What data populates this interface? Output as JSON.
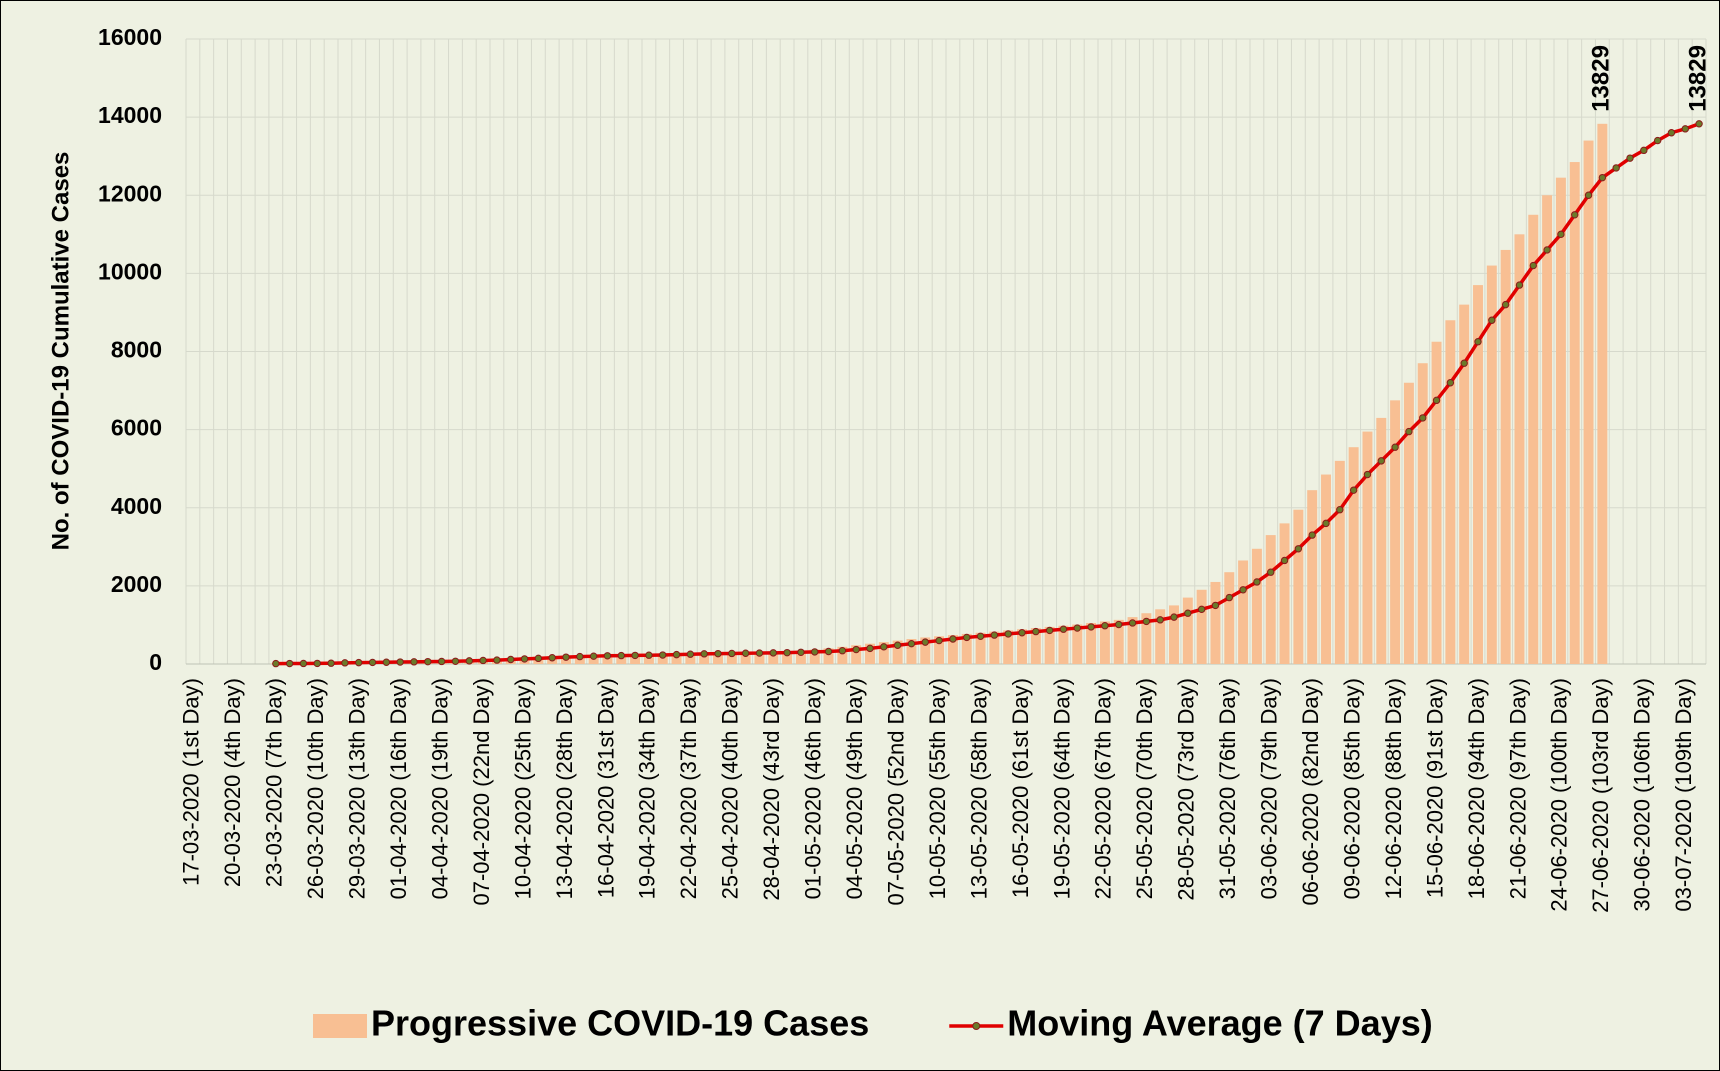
{
  "chart_data": {
    "type": "combo",
    "y_label": "No. of COVID-19 Cumulative Cases",
    "ylim": [
      0,
      16000
    ],
    "yticks": [
      0,
      2000,
      4000,
      6000,
      8000,
      10000,
      12000,
      14000,
      16000
    ],
    "grid": true,
    "legend": "bottom",
    "categories": [
      "17-03-2020 (1st Day)",
      null,
      null,
      "20-03-2020 (4th Day)",
      null,
      null,
      "23-03-2020 (7th Day)",
      null,
      null,
      "26-03-2020 (10th Day)",
      null,
      null,
      "29-03-2020 (13th Day)",
      null,
      null,
      "01-04-2020 (16th Day)",
      null,
      null,
      "04-04-2020 (19th Day)",
      null,
      null,
      "07-04-2020 (22nd Day)",
      null,
      null,
      "10-04-2020 (25th Day)",
      null,
      null,
      "13-04-2020 (28th Day)",
      null,
      null,
      "16-04-2020 (31st Day)",
      null,
      null,
      "19-04-2020 (34th Day)",
      null,
      null,
      "22-04-2020 (37th Day)",
      null,
      null,
      "25-04-2020 (40th Day)",
      null,
      null,
      "28-04-2020 (43rd Day)",
      null,
      null,
      "01-05-2020 (46th Day)",
      null,
      null,
      "04-05-2020 (49th Day)",
      null,
      null,
      "07-05-2020 (52nd Day)",
      null,
      null,
      "10-05-2020 (55th Day)",
      null,
      null,
      "13-05-2020 (58th Day)",
      null,
      null,
      "16-05-2020 (61st Day)",
      null,
      null,
      "19-05-2020 (64th Day)",
      null,
      null,
      "22-05-2020 (67th Day)",
      null,
      null,
      "25-05-2020 (70th Day)",
      null,
      null,
      "28-05-2020 (73rd Day)",
      null,
      null,
      "31-05-2020 (76th Day)",
      null,
      null,
      "03-06-2020 (79th Day)",
      null,
      null,
      "06-06-2020 (82nd Day)",
      null,
      null,
      "09-06-2020 (85th Day)",
      null,
      null,
      "12-06-2020 (88th Day)",
      null,
      null,
      "15-06-2020 (91st Day)",
      null,
      null,
      "18-06-2020 (94th Day)",
      null,
      null,
      "21-06-2020 (97th Day)",
      null,
      null,
      "24-06-2020 (100th Day)",
      null,
      null,
      "27-06-2020 (103rd Day)",
      null,
      null,
      "30-06-2020 (106th Day)",
      null,
      null,
      "03-07-2020 (109th Day)",
      null
    ],
    "series": [
      {
        "name": "Progressive COVID-19 Cases",
        "type": "bar",
        "color": "#f8bf93",
        "values": [
          null,
          null,
          null,
          null,
          null,
          null,
          15,
          20,
          30,
          35,
          40,
          45,
          50,
          55,
          60,
          65,
          70,
          80,
          90,
          100,
          115,
          130,
          145,
          160,
          175,
          190,
          200,
          210,
          215,
          220,
          225,
          230,
          240,
          250,
          260,
          265,
          270,
          275,
          280,
          285,
          290,
          300,
          310,
          320,
          340,
          370,
          400,
          440,
          480,
          520,
          560,
          600,
          640,
          680,
          710,
          740,
          770,
          800,
          830,
          860,
          890,
          920,
          950,
          980,
          1010,
          1050,
          1090,
          1130,
          1200,
          1300,
          1400,
          1500,
          1700,
          1900,
          2100,
          2350,
          2650,
          2950,
          3300,
          3600,
          3950,
          4450,
          4850,
          5200,
          5550,
          5950,
          6300,
          6750,
          7200,
          7700,
          8250,
          8800,
          9200,
          9700,
          10200,
          10600,
          11000,
          11500,
          12000,
          12450,
          12850,
          13400,
          13829,
          null,
          null,
          null,
          null,
          null,
          null,
          null
        ],
        "value_labels": [
          null,
          null,
          null,
          null,
          null,
          null,
          null,
          null,
          null,
          null,
          null,
          null,
          null,
          null,
          null,
          null,
          null,
          null,
          null,
          null,
          null,
          null,
          null,
          null,
          null,
          null,
          null,
          null,
          null,
          null,
          null,
          null,
          null,
          null,
          null,
          null,
          null,
          null,
          null,
          null,
          null,
          null,
          null,
          null,
          null,
          null,
          null,
          null,
          null,
          null,
          null,
          null,
          null,
          null,
          null,
          null,
          null,
          null,
          null,
          null,
          null,
          null,
          null,
          null,
          null,
          null,
          null,
          null,
          null,
          null,
          null,
          null,
          null,
          null,
          null,
          null,
          null,
          null,
          null,
          null,
          null,
          null,
          null,
          null,
          null,
          null,
          null,
          null,
          null,
          null,
          null,
          null,
          null,
          null,
          null,
          null,
          null,
          null,
          null,
          null,
          null,
          null,
          "13829",
          null,
          null,
          null,
          null,
          null,
          null,
          null
        ]
      },
      {
        "name": "Moving Average (7 Days)",
        "type": "line",
        "color": "#e00000",
        "marker_color": "#6b7a2a",
        "values": [
          null,
          null,
          null,
          null,
          null,
          null,
          10,
          12,
          14,
          15,
          20,
          30,
          35,
          40,
          45,
          50,
          55,
          60,
          65,
          70,
          80,
          90,
          100,
          115,
          130,
          145,
          160,
          175,
          190,
          200,
          210,
          215,
          220,
          225,
          230,
          240,
          250,
          260,
          265,
          270,
          275,
          280,
          285,
          290,
          300,
          310,
          320,
          340,
          370,
          400,
          440,
          480,
          520,
          560,
          600,
          640,
          680,
          710,
          740,
          770,
          800,
          830,
          860,
          890,
          920,
          950,
          980,
          1010,
          1050,
          1090,
          1130,
          1200,
          1300,
          1400,
          1500,
          1700,
          1900,
          2100,
          2350,
          2650,
          2950,
          3300,
          3600,
          3950,
          4450,
          4850,
          5200,
          5550,
          5950,
          6300,
          6750,
          7200,
          7700,
          8250,
          8800,
          9200,
          9700,
          10200,
          10600,
          11000,
          11500,
          12000,
          12450,
          12700,
          12950,
          13150,
          13400,
          13600,
          13700,
          13829
        ],
        "value_labels": [
          null,
          null,
          null,
          null,
          null,
          null,
          null,
          null,
          null,
          null,
          null,
          null,
          null,
          null,
          null,
          null,
          null,
          null,
          null,
          null,
          null,
          null,
          null,
          null,
          null,
          null,
          null,
          null,
          null,
          null,
          null,
          null,
          null,
          null,
          null,
          null,
          null,
          null,
          null,
          null,
          null,
          null,
          null,
          null,
          null,
          null,
          null,
          null,
          null,
          null,
          null,
          null,
          null,
          null,
          null,
          null,
          null,
          null,
          null,
          null,
          null,
          null,
          null,
          null,
          null,
          null,
          null,
          null,
          null,
          null,
          null,
          null,
          null,
          null,
          null,
          null,
          null,
          null,
          null,
          null,
          null,
          null,
          null,
          null,
          null,
          null,
          null,
          null,
          null,
          null,
          null,
          null,
          null,
          null,
          null,
          null,
          null,
          null,
          null,
          null,
          null,
          null,
          null,
          null,
          null,
          null,
          null,
          null,
          null,
          "13829"
        ]
      }
    ]
  }
}
